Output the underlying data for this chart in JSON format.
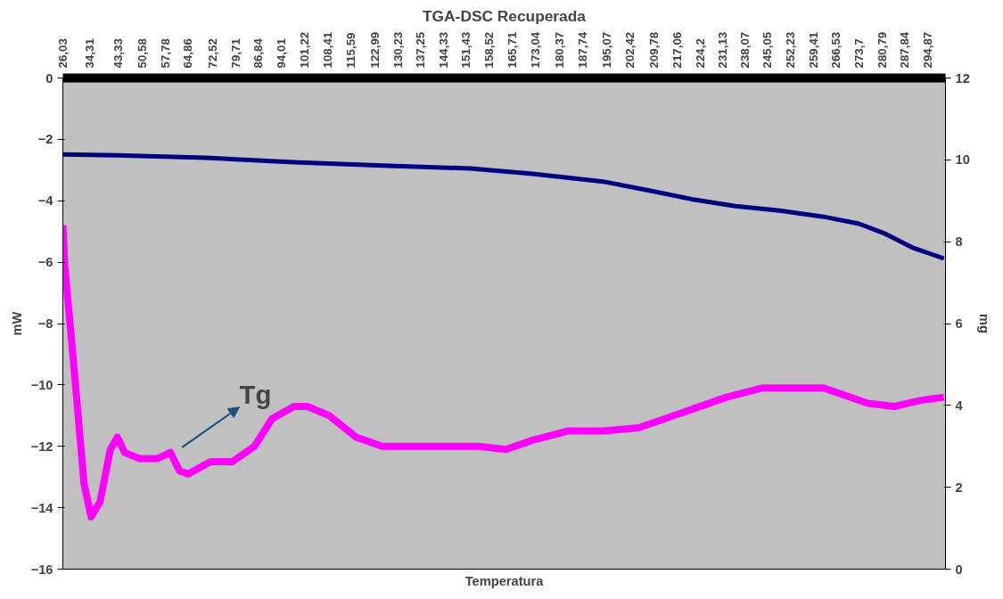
{
  "chart_data": {
    "type": "line",
    "title": "TGA-DSC Recuperada",
    "xlabel": "Temperatura",
    "ylabel": "mW",
    "y2label": "mg",
    "xlim": [
      26.03,
      300.5
    ],
    "xticks": [
      {
        "value": 26.03,
        "label": "26,03"
      },
      {
        "value": 34.31,
        "label": "34,31"
      },
      {
        "value": 43.33,
        "label": "43,33"
      },
      {
        "value": 50.58,
        "label": "50,58"
      },
      {
        "value": 57.78,
        "label": "57,78"
      },
      {
        "value": 64.86,
        "label": "64,86"
      },
      {
        "value": 72.52,
        "label": "72,52"
      },
      {
        "value": 79.71,
        "label": "79,71"
      },
      {
        "value": 86.84,
        "label": "86,84"
      },
      {
        "value": 94.01,
        "label": "94,01"
      },
      {
        "value": 101.22,
        "label": "101,22"
      },
      {
        "value": 108.41,
        "label": "108,41"
      },
      {
        "value": 115.59,
        "label": "115,59"
      },
      {
        "value": 122.99,
        "label": "122,99"
      },
      {
        "value": 130.23,
        "label": "130,23"
      },
      {
        "value": 137.25,
        "label": "137,25"
      },
      {
        "value": 144.33,
        "label": "144,33"
      },
      {
        "value": 151.43,
        "label": "151,43"
      },
      {
        "value": 158.52,
        "label": "158,52"
      },
      {
        "value": 165.71,
        "label": "165,71"
      },
      {
        "value": 173.04,
        "label": "173,04"
      },
      {
        "value": 180.37,
        "label": "180,37"
      },
      {
        "value": 187.74,
        "label": "187,74"
      },
      {
        "value": 195.07,
        "label": "195,07"
      },
      {
        "value": 202.42,
        "label": "202,42"
      },
      {
        "value": 209.78,
        "label": "209,78"
      },
      {
        "value": 217.06,
        "label": "217,06"
      },
      {
        "value": 224.2,
        "label": "224,2"
      },
      {
        "value": 231.13,
        "label": "231,13"
      },
      {
        "value": 238.07,
        "label": "238,07"
      },
      {
        "value": 245.05,
        "label": "245,05"
      },
      {
        "value": 252.23,
        "label": "252,23"
      },
      {
        "value": 259.41,
        "label": "259,41"
      },
      {
        "value": 266.53,
        "label": "266,53"
      },
      {
        "value": 273.7,
        "label": "273,7"
      },
      {
        "value": 280.79,
        "label": "280,79"
      },
      {
        "value": 287.84,
        "label": "287,84"
      },
      {
        "value": 294.87,
        "label": "294,87"
      }
    ],
    "ylim": [
      -16,
      0
    ],
    "yticks": [
      -16,
      -14,
      -12,
      -10,
      -8,
      -6,
      -4,
      -2,
      0
    ],
    "y2lim": [
      0,
      12
    ],
    "y2ticks": [
      0,
      2,
      4,
      6,
      8,
      10,
      12
    ],
    "grid": false,
    "marker": "none",
    "line_style": "solid",
    "series": [
      {
        "color": "#ff00ff",
        "x": [
          26.03,
          26.6,
          29.3,
          32.6,
          34.8,
          37.6,
          40.8,
          43.0,
          45.2,
          49.9,
          55.4,
          59.5,
          62.3,
          65.0,
          71.9,
          78.7,
          85.6,
          91.1,
          97.9,
          102.1,
          108.9,
          117.2,
          125.4,
          139.1,
          155.6,
          163.8,
          172.1,
          183.0,
          194.0,
          205.0,
          218.7,
          232.4,
          243.4,
          262.6,
          276.4,
          284.6,
          292.8,
          300.0
        ],
        "values": [
          -4.8,
          -6.1,
          -9.2,
          -13.2,
          -14.3,
          -13.8,
          -12.1,
          -11.7,
          -12.2,
          -12.4,
          -12.4,
          -12.2,
          -12.8,
          -12.9,
          -12.5,
          -12.5,
          -12.0,
          -11.1,
          -10.7,
          -10.7,
          -11.0,
          -11.7,
          -12.0,
          -12.0,
          -12.0,
          -12.1,
          -11.8,
          -11.5,
          -11.5,
          -11.4,
          -10.9,
          -10.4,
          -10.1,
          -10.1,
          -10.6,
          -10.7,
          -10.5,
          -10.4
        ]
      },
      {
        "color": "#000080",
        "axis": "y2",
        "x": [
          26.03,
          43.0,
          70.5,
          97.9,
          125.4,
          152.8,
          172.1,
          194.0,
          207.7,
          221.5,
          235.2,
          248.9,
          262.6,
          273.6,
          281.9,
          290.1,
          300.0
        ],
        "values": [
          10.13,
          10.11,
          10.05,
          9.94,
          9.86,
          9.79,
          9.66,
          9.47,
          9.26,
          9.04,
          8.87,
          8.76,
          8.61,
          8.44,
          8.19,
          7.86,
          7.59
        ]
      }
    ],
    "annotations": [
      "Tg"
    ]
  }
}
